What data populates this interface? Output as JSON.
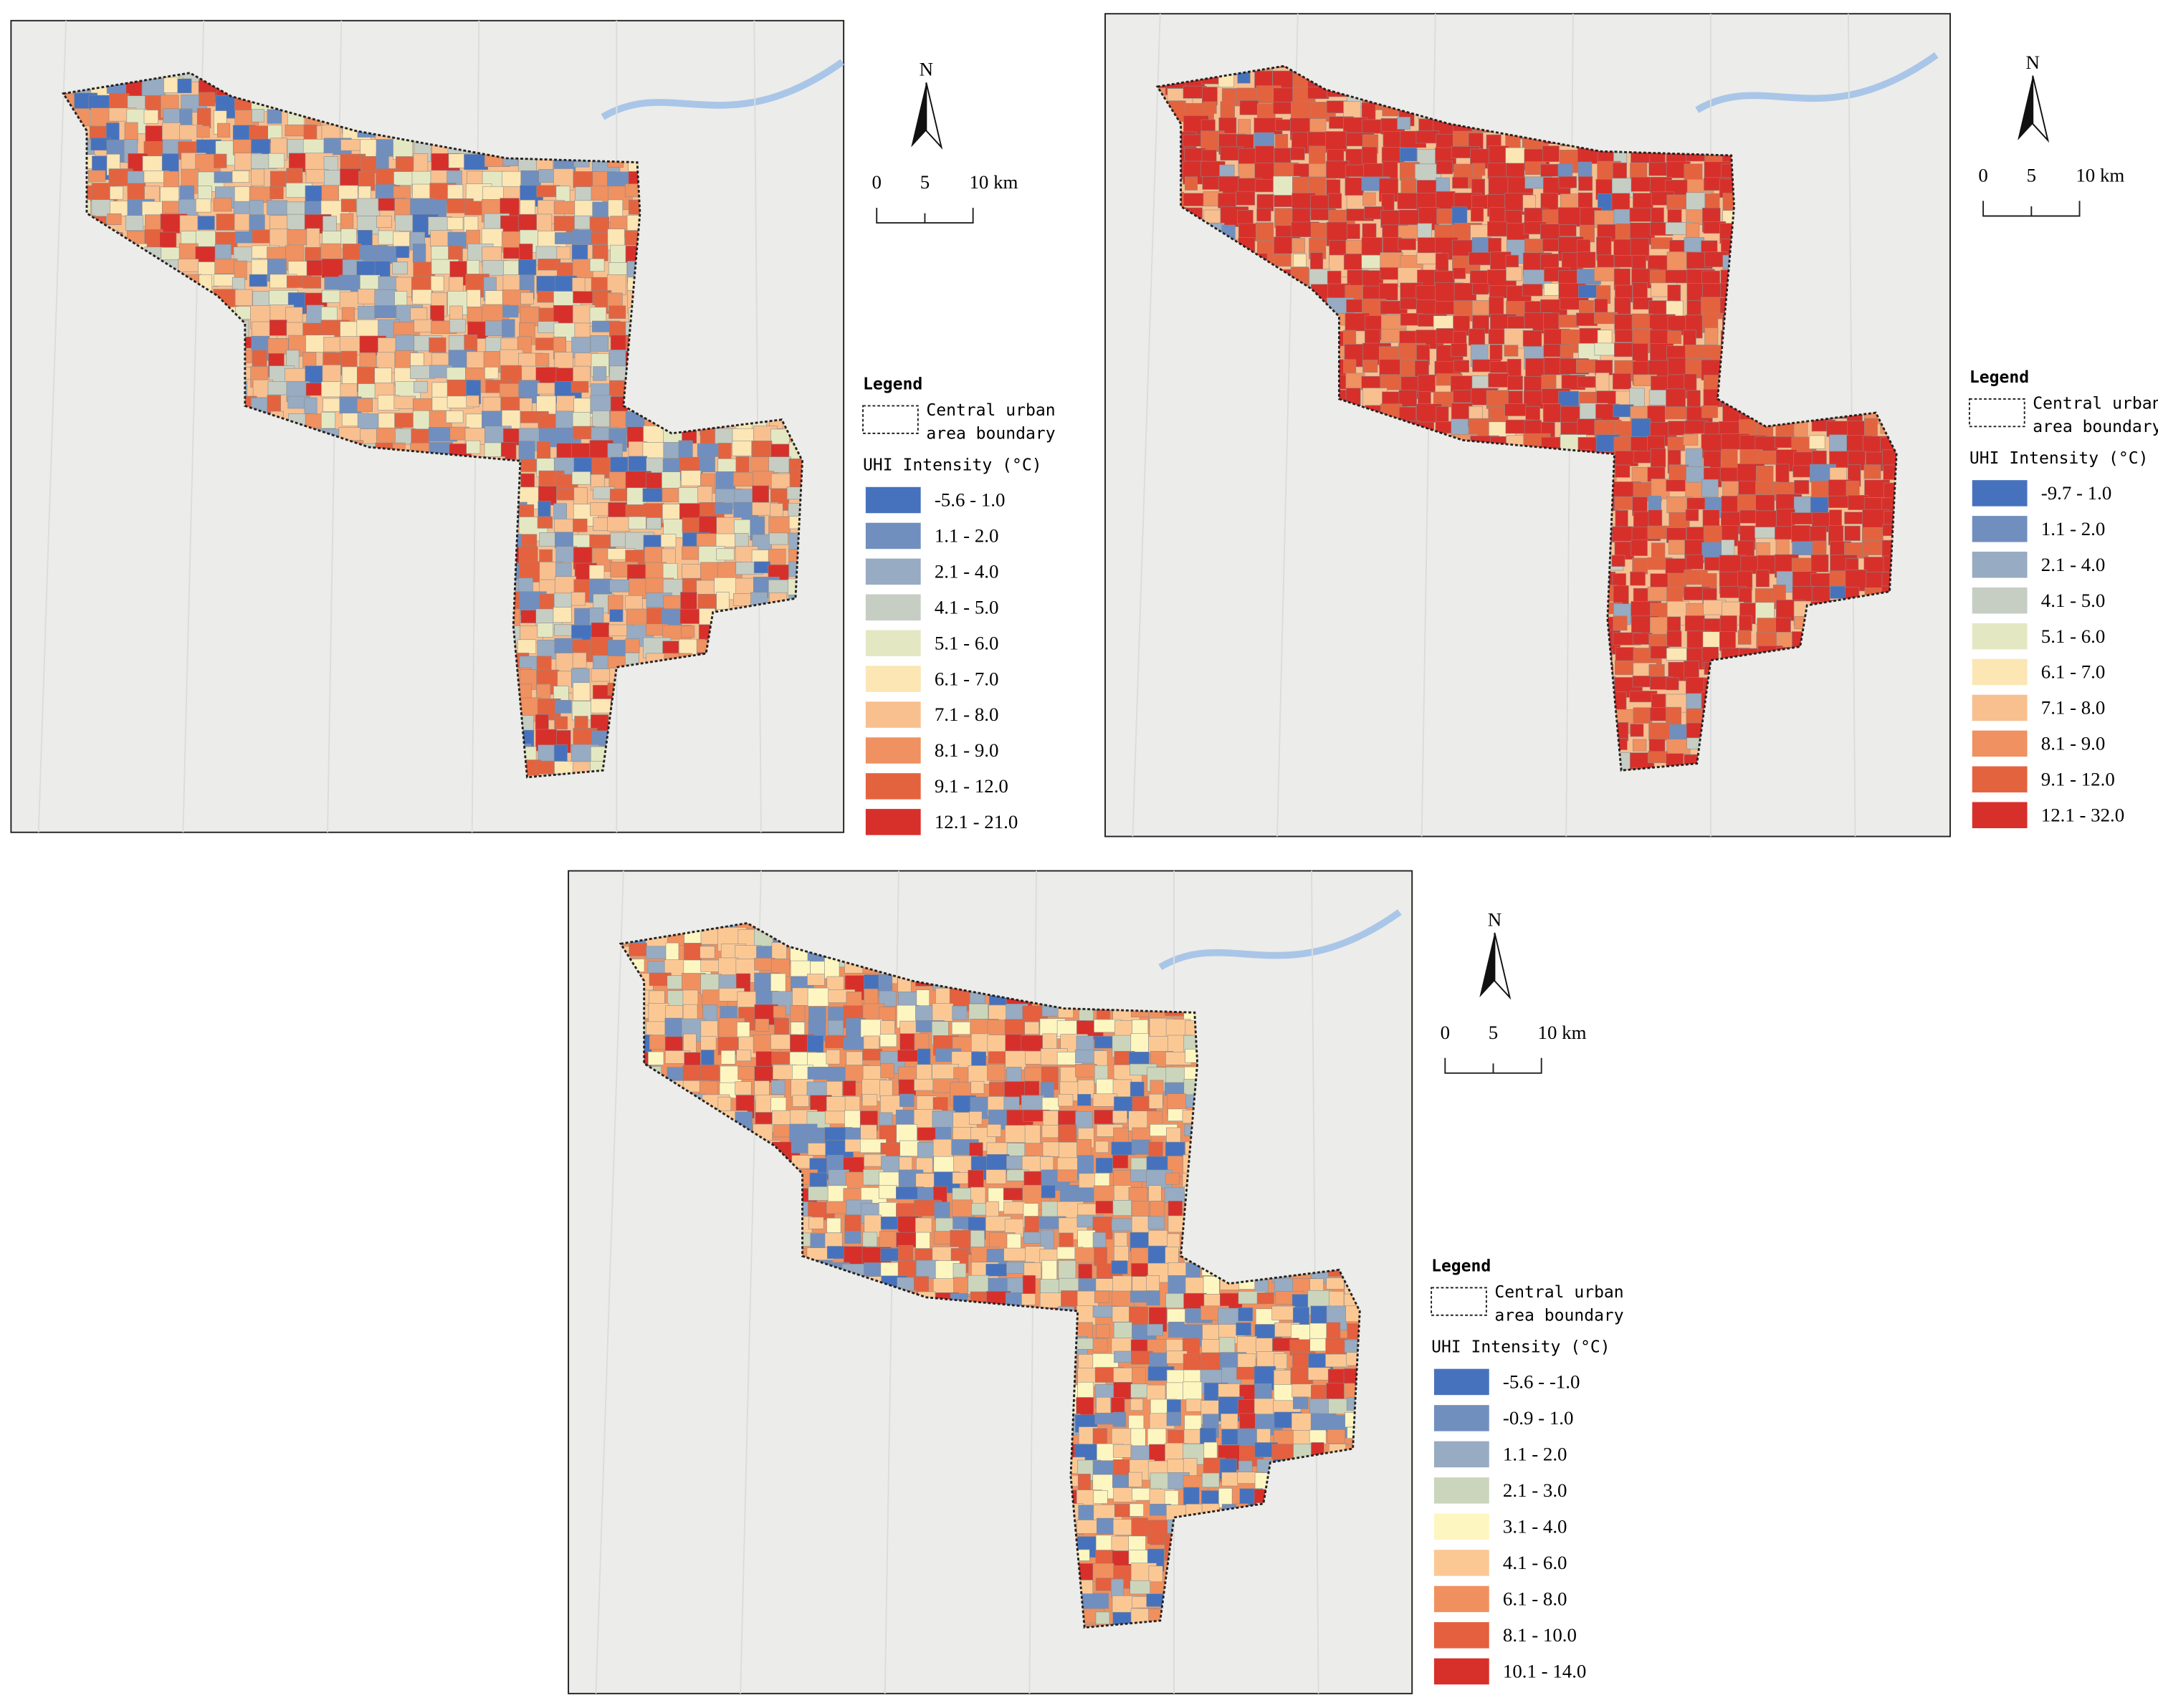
{
  "maps": [
    {
      "north": "N",
      "scale": [
        "0",
        "5",
        "10 km"
      ],
      "legend_title": "Legend",
      "boundary_label": [
        "Central urban",
        "area boundary"
      ],
      "intensity_title": "UHI Intensity (°C)",
      "classes": [
        {
          "label": "-5.6 - 1.0",
          "color": "#4672bd"
        },
        {
          "label": "1.1 - 2.0",
          "color": "#708fbf"
        },
        {
          "label": "2.1 - 4.0",
          "color": "#97abc2"
        },
        {
          "label": "4.1 - 5.0",
          "color": "#c6cdc3"
        },
        {
          "label": "5.1 - 6.0",
          "color": "#e4e8c2"
        },
        {
          "label": "6.1 - 7.0",
          "color": "#fbe6b4"
        },
        {
          "label": "7.1 - 8.0",
          "color": "#f8bf8f"
        },
        {
          "label": "8.1 - 9.0",
          "color": "#ef9160"
        },
        {
          "label": "9.1 - 12.0",
          "color": "#e4633f"
        },
        {
          "label": "12.1 - 21.0",
          "color": "#d7302b"
        }
      ]
    },
    {
      "north": "N",
      "scale": [
        "0",
        "5",
        "10 km"
      ],
      "legend_title": "Legend",
      "boundary_label": [
        "Central urban",
        "area boundary"
      ],
      "intensity_title": "UHI Intensity (°C)",
      "classes": [
        {
          "label": "-9.7 - 1.0",
          "color": "#4672bd"
        },
        {
          "label": "1.1 - 2.0",
          "color": "#708fbf"
        },
        {
          "label": "2.1 - 4.0",
          "color": "#97abc2"
        },
        {
          "label": "4.1 - 5.0",
          "color": "#c6cdc3"
        },
        {
          "label": "5.1 - 6.0",
          "color": "#e4e8c2"
        },
        {
          "label": "6.1 - 7.0",
          "color": "#fbe6b4"
        },
        {
          "label": "7.1 - 8.0",
          "color": "#f8bf8f"
        },
        {
          "label": "8.1 - 9.0",
          "color": "#ef9160"
        },
        {
          "label": "9.1 - 12.0",
          "color": "#e4633f"
        },
        {
          "label": "12.1 - 32.0",
          "color": "#d7302b"
        }
      ]
    },
    {
      "north": "N",
      "scale": [
        "0",
        "5",
        "10 km"
      ],
      "legend_title": "Legend",
      "boundary_label": [
        "Central urban",
        "area boundary"
      ],
      "intensity_title": "UHI Intensity (°C)",
      "classes": [
        {
          "label": "-5.6 - -1.0",
          "color": "#4672bd"
        },
        {
          "label": "-0.9 - 1.0",
          "color": "#708fbf"
        },
        {
          "label": "1.1 - 2.0",
          "color": "#97abc2"
        },
        {
          "label": "2.1 - 3.0",
          "color": "#cbd5bb"
        },
        {
          "label": "3.1 - 4.0",
          "color": "#fdf6c0"
        },
        {
          "label": "4.1 - 6.0",
          "color": "#fbc894"
        },
        {
          "label": "6.1 - 8.0",
          "color": "#f0905f"
        },
        {
          "label": "8.1 - 10.0",
          "color": "#e4603e"
        },
        {
          "label": "10.1 - 14.0",
          "color": "#d7302b"
        }
      ]
    }
  ]
}
